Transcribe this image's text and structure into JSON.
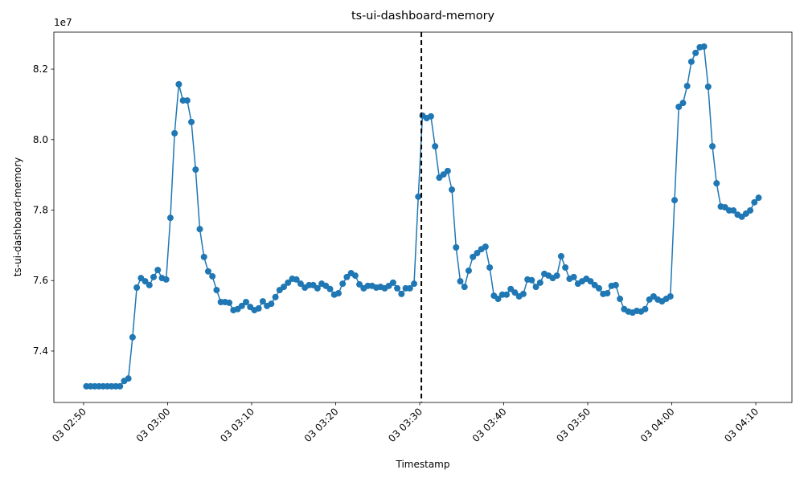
{
  "chart_data": {
    "type": "line",
    "title": "ts-ui-dashboard-memory",
    "x_label": "Timestamp",
    "y_label": "ts-ui-dashboard-memory",
    "offset_text": "1e7",
    "color": "#1f77b4",
    "markers": true,
    "grid": false,
    "x": [
      "03 02:50:20",
      "03 02:50:50",
      "03 02:51:20",
      "03 02:51:50",
      "03 02:52:20",
      "03 02:52:50",
      "03 02:53:20",
      "03 02:53:50",
      "03 02:54:20",
      "03 02:54:50",
      "03 02:55:20",
      "03 02:55:50",
      "03 02:56:20",
      "03 02:56:50",
      "03 02:57:20",
      "03 02:57:50",
      "03 02:58:20",
      "03 02:58:50",
      "03 02:59:20",
      "03 02:59:50",
      "03 03:00:20",
      "03 03:00:50",
      "03 03:01:20",
      "03 03:01:50",
      "03 03:02:20",
      "03 03:02:50",
      "03 03:03:20",
      "03 03:03:50",
      "03 03:04:20",
      "03 03:04:50",
      "03 03:05:20",
      "03 03:05:50",
      "03 03:06:20",
      "03 03:06:50",
      "03 03:07:20",
      "03 03:07:50",
      "03 03:08:20",
      "03 03:08:50",
      "03 03:09:20",
      "03 03:09:50",
      "03 03:10:20",
      "03 03:10:50",
      "03 03:11:20",
      "03 03:11:50",
      "03 03:12:20",
      "03 03:12:50",
      "03 03:13:20",
      "03 03:13:50",
      "03 03:14:20",
      "03 03:14:50",
      "03 03:15:20",
      "03 03:15:50",
      "03 03:16:20",
      "03 03:16:50",
      "03 03:17:20",
      "03 03:17:50",
      "03 03:18:20",
      "03 03:18:50",
      "03 03:19:20",
      "03 03:19:50",
      "03 03:20:20",
      "03 03:20:50",
      "03 03:21:20",
      "03 03:21:50",
      "03 03:22:20",
      "03 03:22:50",
      "03 03:23:20",
      "03 03:23:50",
      "03 03:24:20",
      "03 03:24:50",
      "03 03:25:20",
      "03 03:25:50",
      "03 03:26:20",
      "03 03:26:50",
      "03 03:27:20",
      "03 03:27:50",
      "03 03:28:20",
      "03 03:28:50",
      "03 03:29:20",
      "03 03:29:50",
      "03 03:30:20",
      "03 03:30:50",
      "03 03:31:20",
      "03 03:31:50",
      "03 03:32:20",
      "03 03:32:50",
      "03 03:33:20",
      "03 03:33:50",
      "03 03:34:20",
      "03 03:34:50",
      "03 03:35:20",
      "03 03:35:50",
      "03 03:36:20",
      "03 03:36:50",
      "03 03:37:20",
      "03 03:37:50",
      "03 03:38:20",
      "03 03:38:50",
      "03 03:39:20",
      "03 03:39:50",
      "03 03:40:20",
      "03 03:40:50",
      "03 03:41:20",
      "03 03:41:50",
      "03 03:42:20",
      "03 03:42:50",
      "03 03:43:20",
      "03 03:43:50",
      "03 03:44:20",
      "03 03:44:50",
      "03 03:45:20",
      "03 03:45:50",
      "03 03:46:20",
      "03 03:46:50",
      "03 03:47:20",
      "03 03:47:50",
      "03 03:48:20",
      "03 03:48:50",
      "03 03:49:20",
      "03 03:49:50",
      "03 03:50:20",
      "03 03:50:50",
      "03 03:51:20",
      "03 03:51:50",
      "03 03:52:20",
      "03 03:52:50",
      "03 03:53:20",
      "03 03:53:50",
      "03 03:54:20",
      "03 03:54:50",
      "03 03:55:20",
      "03 03:55:50",
      "03 03:56:20",
      "03 03:56:50",
      "03 03:57:20",
      "03 03:57:50",
      "03 03:58:20",
      "03 03:58:50",
      "03 03:59:20",
      "03 03:59:50",
      "03 04:00:20",
      "03 04:00:50",
      "03 04:01:20",
      "03 04:01:50",
      "03 04:02:20",
      "03 04:02:50",
      "03 04:03:20",
      "03 04:03:50",
      "03 04:04:20",
      "03 04:04:50",
      "03 04:05:20",
      "03 04:05:50",
      "03 04:06:20",
      "03 04:06:50",
      "03 04:07:20",
      "03 04:07:50",
      "03 04:08:20",
      "03 04:08:50",
      "03 04:09:20",
      "03 04:09:50",
      "03 04:10:20"
    ],
    "values": [
      7.3,
      7.3,
      7.3,
      7.3,
      7.3,
      7.3,
      7.3,
      7.3,
      7.3,
      7.315,
      7.322,
      7.439,
      7.58,
      7.607,
      7.598,
      7.587,
      7.61,
      7.63,
      7.607,
      7.603,
      7.778,
      8.018,
      8.157,
      8.111,
      8.111,
      8.05,
      7.915,
      7.746,
      7.667,
      7.626,
      7.612,
      7.573,
      7.539,
      7.539,
      7.537,
      7.516,
      7.519,
      7.528,
      7.539,
      7.525,
      7.516,
      7.521,
      7.541,
      7.528,
      7.534,
      7.553,
      7.573,
      7.582,
      7.594,
      7.605,
      7.603,
      7.591,
      7.58,
      7.587,
      7.587,
      7.578,
      7.591,
      7.585,
      7.576,
      7.56,
      7.564,
      7.591,
      7.61,
      7.621,
      7.614,
      7.589,
      7.578,
      7.585,
      7.585,
      7.58,
      7.582,
      7.578,
      7.585,
      7.594,
      7.578,
      7.562,
      7.578,
      7.578,
      7.591,
      7.838,
      8.068,
      8.061,
      8.066,
      7.981,
      7.892,
      7.901,
      7.911,
      7.858,
      7.694,
      7.598,
      7.582,
      7.628,
      7.667,
      7.678,
      7.689,
      7.696,
      7.637,
      7.557,
      7.548,
      7.56,
      7.56,
      7.576,
      7.566,
      7.555,
      7.562,
      7.603,
      7.601,
      7.582,
      7.594,
      7.619,
      7.614,
      7.607,
      7.614,
      7.669,
      7.637,
      7.605,
      7.61,
      7.591,
      7.598,
      7.605,
      7.598,
      7.587,
      7.578,
      7.562,
      7.564,
      7.585,
      7.587,
      7.548,
      7.519,
      7.512,
      7.509,
      7.514,
      7.512,
      7.519,
      7.546,
      7.555,
      7.546,
      7.541,
      7.548,
      7.555,
      7.828,
      8.093,
      8.104,
      8.152,
      8.221,
      8.246,
      8.262,
      8.264,
      8.15,
      7.981,
      7.876,
      7.81,
      7.808,
      7.799,
      7.799,
      7.787,
      7.781,
      7.79,
      7.799,
      7.822,
      7.835
    ],
    "vline": "03 03:30:12",
    "vline_color": "#000000",
    "xlim": [
      "03 02:46:28",
      "03 04:14:18"
    ],
    "xticks": [
      "03 02:50",
      "03 03:00",
      "03 03:10",
      "03 03:20",
      "03 03:30",
      "03 03:40",
      "03 03:50",
      "03 04:00",
      "03 04:10"
    ],
    "ylim": [
      7.254,
      8.305
    ],
    "yticks": [
      7.4,
      7.6,
      7.8,
      {
        "value": 8,
        "label": "8.0"
      },
      8.2
    ]
  }
}
